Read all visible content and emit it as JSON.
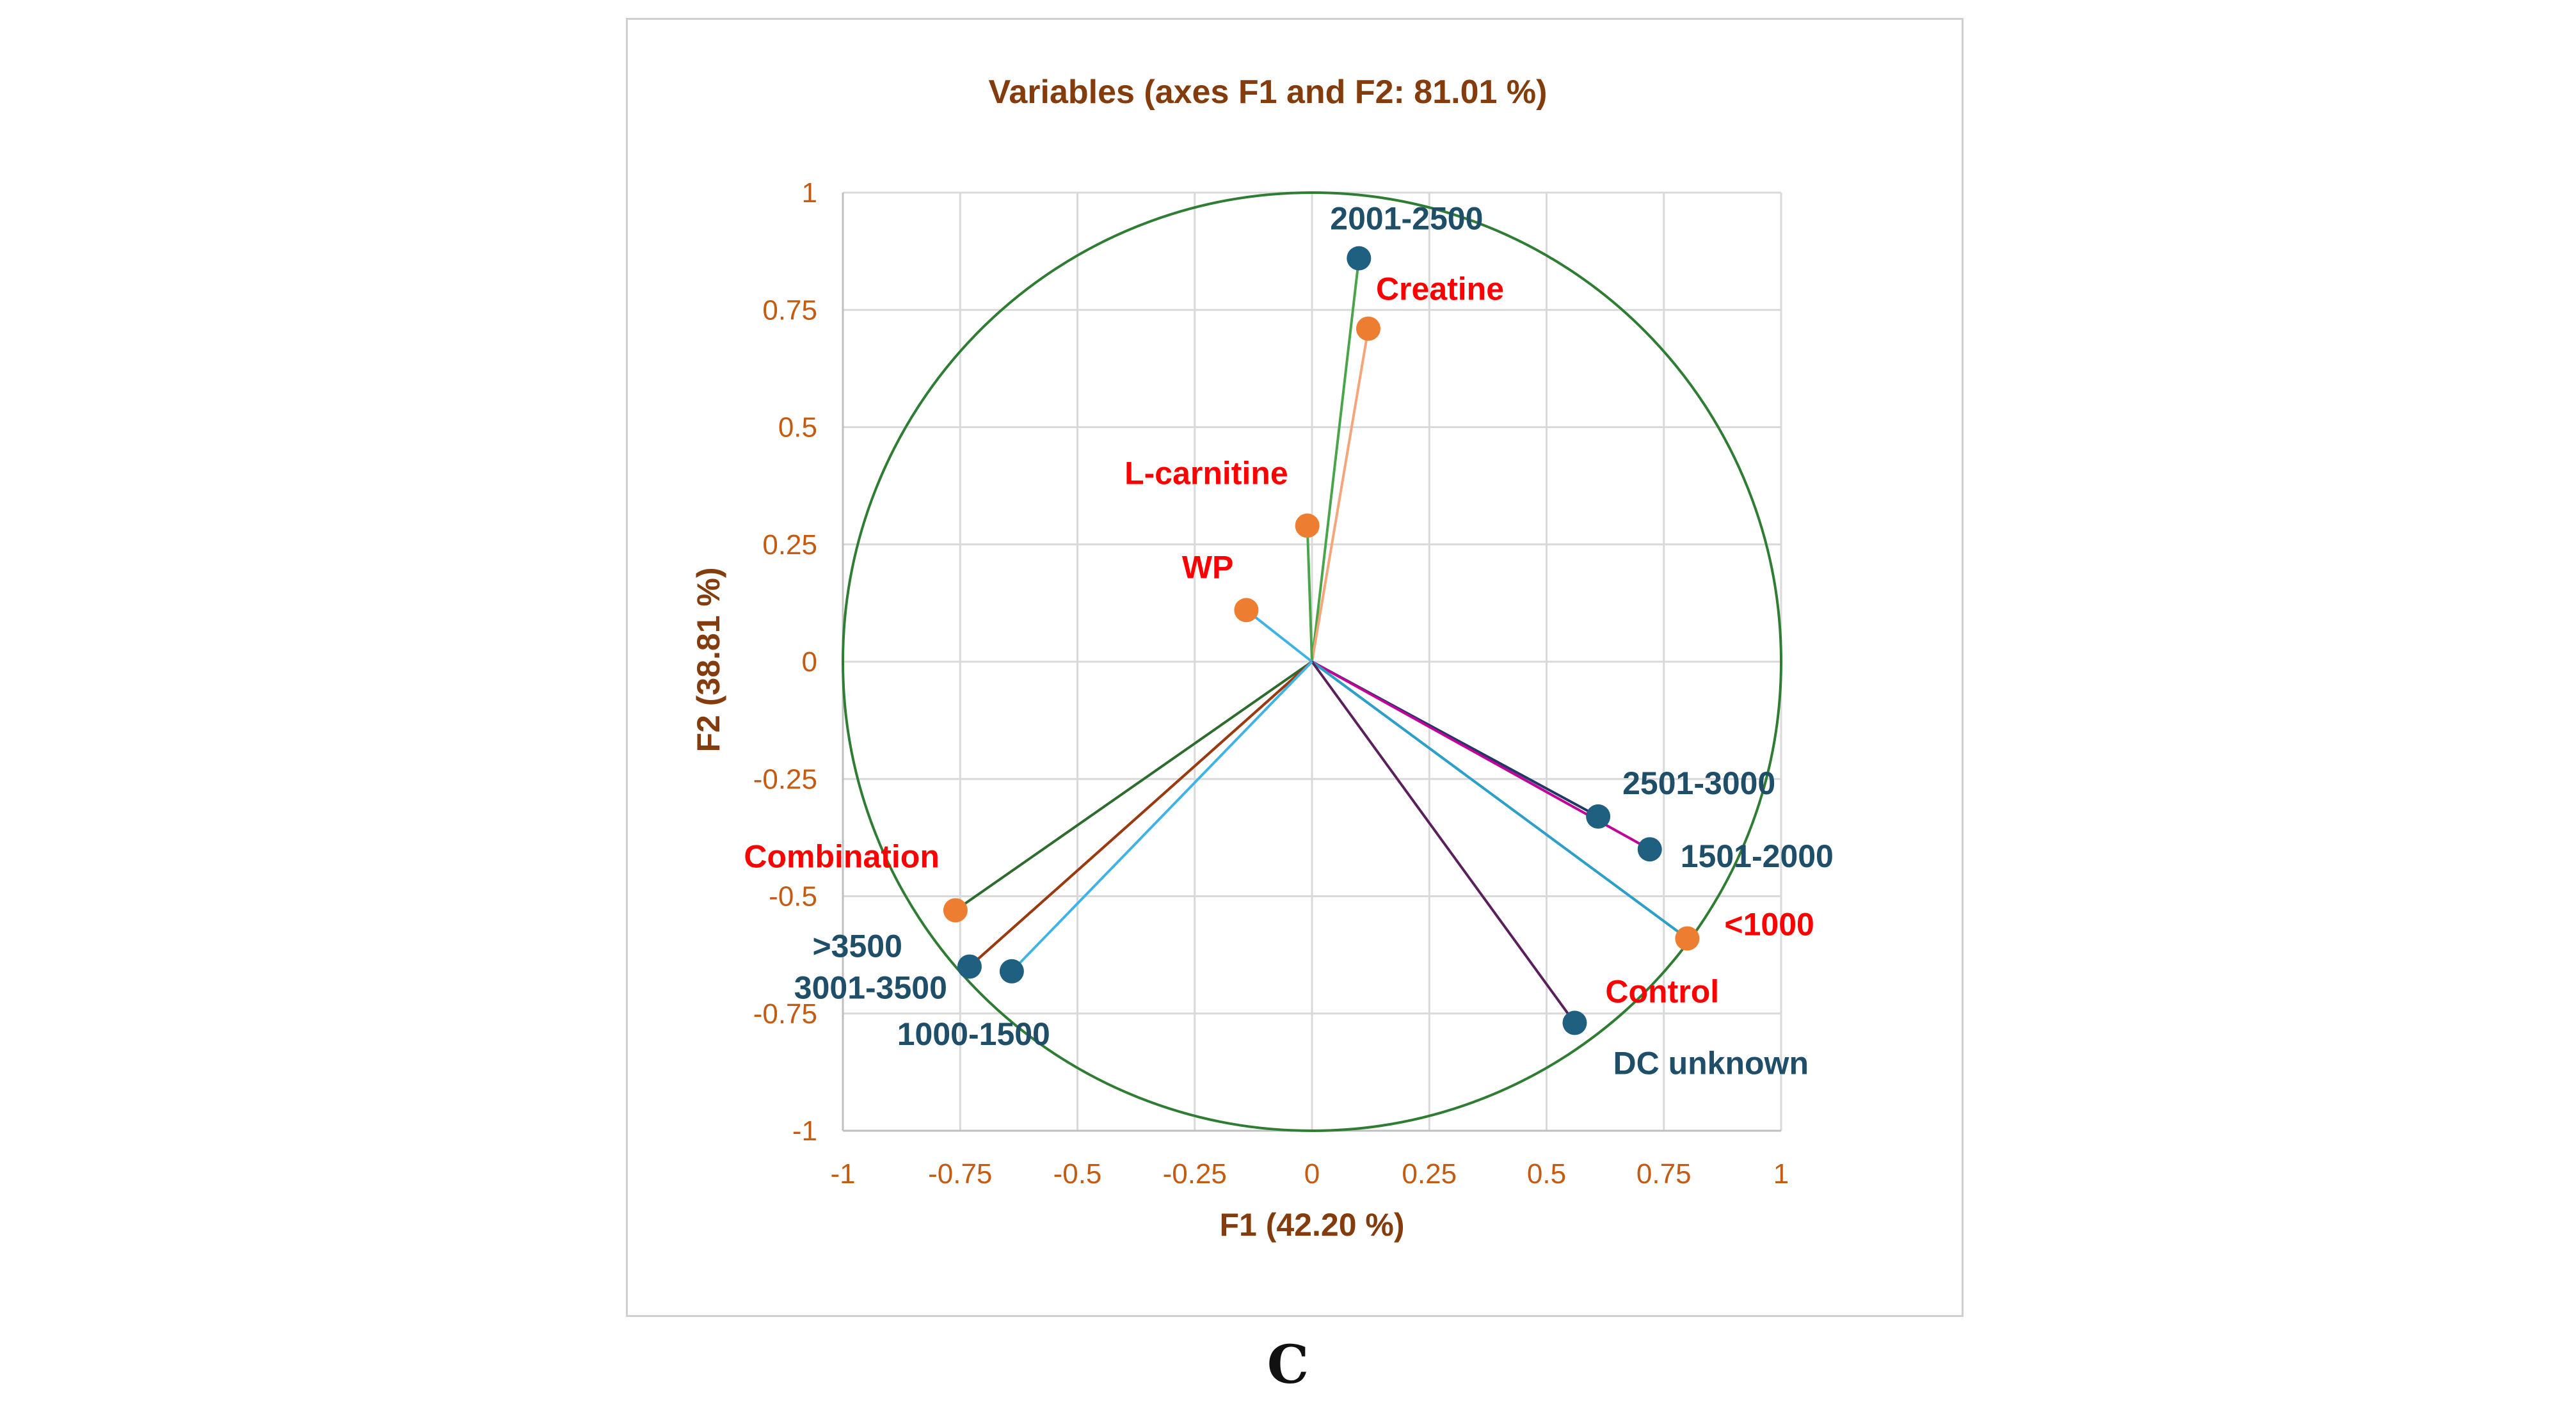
{
  "chart_data": {
    "type": "scatter",
    "title": "Variables (axes F1 and F2: 81.01 %)",
    "xlabel": "F1 (42.20 %)",
    "ylabel": "F2 (38.81 %)",
    "xlim": [
      -1,
      1
    ],
    "ylim": [
      -1,
      1
    ],
    "x_ticks": [
      "-1",
      "-0.75",
      "-0.5",
      "-0.25",
      "0",
      "0.25",
      "0.5",
      "0.75",
      "1"
    ],
    "y_ticks": [
      "1",
      "0.75",
      "0.5",
      "0.25",
      "0",
      "-0.25",
      "-0.5",
      "-0.75",
      "-1"
    ],
    "grid": true,
    "unit_circle": true,
    "variables": [
      {
        "label": "2001-2500",
        "x": 0.1,
        "y": 0.86,
        "group": "blue",
        "line_color": "#4aa54a"
      },
      {
        "label": "Creatine",
        "x": 0.12,
        "y": 0.71,
        "group": "red",
        "line_color": "#f4a57a"
      },
      {
        "label": "L-carnitine",
        "x": -0.01,
        "y": 0.29,
        "group": "red",
        "line_color": "#4aa54a"
      },
      {
        "label": "WP",
        "x": -0.14,
        "y": 0.11,
        "group": "red",
        "line_color": "#3fb3e6"
      },
      {
        "label": "2501-3000",
        "x": 0.61,
        "y": -0.33,
        "group": "blue",
        "line_color": "#1f3864"
      },
      {
        "label": "1501-2000",
        "x": 0.72,
        "y": -0.4,
        "group": "blue",
        "line_color": "#c00098"
      },
      {
        "label": "<1000",
        "x": 0.8,
        "y": -0.59,
        "group": "red",
        "line_color": "#2e9fc9"
      },
      {
        "label": "Control",
        "x": 0.8,
        "y": -0.59,
        "group": "red",
        "line_color": "#2e9fc9",
        "hidden_point": true
      },
      {
        "label": "DC unknown",
        "x": 0.56,
        "y": -0.77,
        "group": "blue",
        "line_color": "#5b1f5c"
      },
      {
        "label": "Combination",
        "x": -0.76,
        "y": -0.53,
        "group": "red",
        "line_color": "#2e6b2e"
      },
      {
        "label": ">3500",
        "x": -0.73,
        "y": -0.65,
        "group": "blue",
        "line_color": "#9a3a10"
      },
      {
        "label": "3001-3500",
        "x": -0.73,
        "y": -0.65,
        "group": "blue",
        "line_color": "#9a3a10",
        "hidden_point": true
      },
      {
        "label": "1000-1500",
        "x": -0.64,
        "y": -0.66,
        "group": "blue",
        "line_color": "#3fb3e6"
      }
    ],
    "colors": {
      "blue_point": "#1f5f80",
      "red_point": "#ed7d31",
      "blue_label": "#1f4e69",
      "red_label": "#ff0000",
      "circle": "#2e7d32",
      "grid": "#d9d9d9",
      "title": "#843c0c",
      "ticks": "#c55a11"
    }
  },
  "panel_label": "C"
}
